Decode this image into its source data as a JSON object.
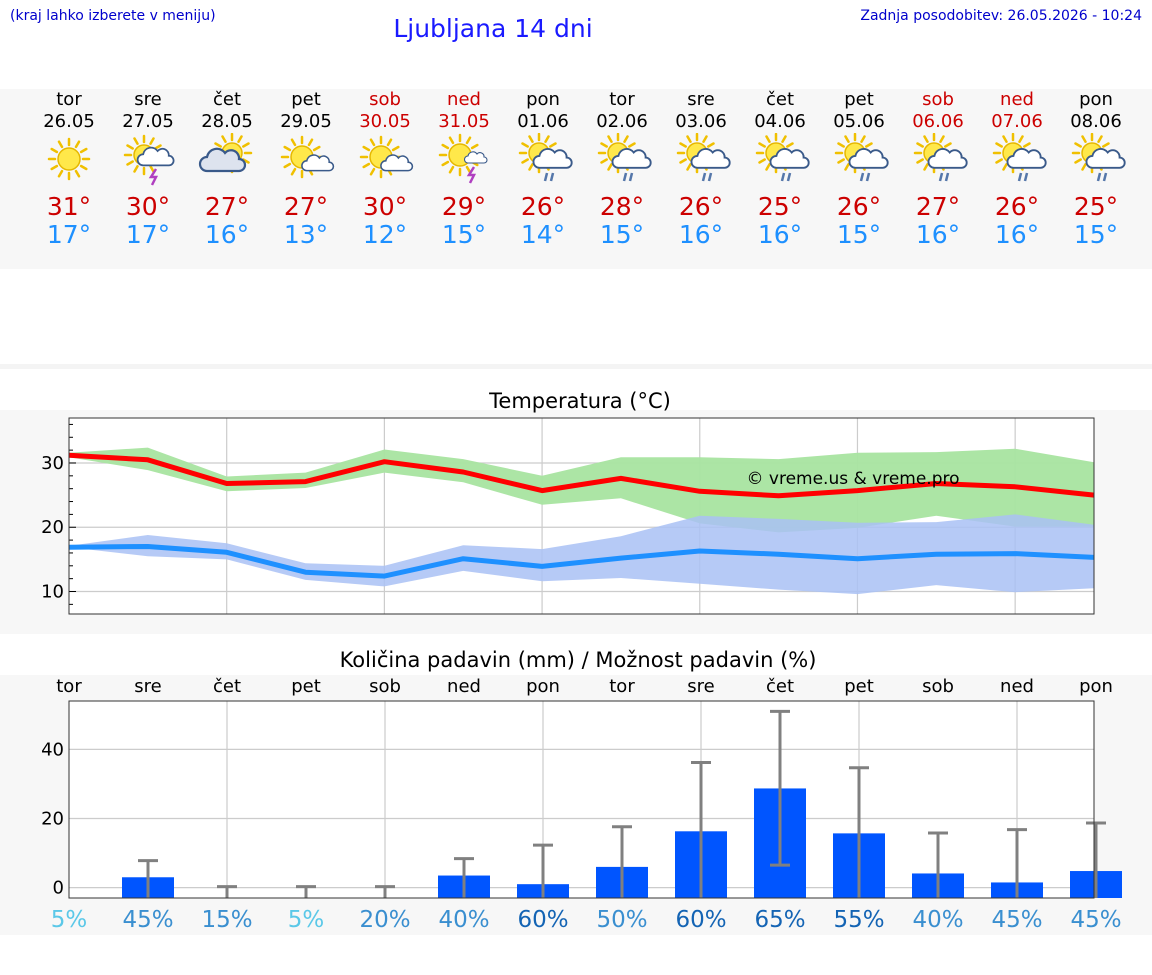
{
  "header": {
    "menu_hint": "(kraj lahko izberete v meniju)",
    "title": "Ljubljana 14 dni",
    "updated": "Zadnja posodobitev: 26.05.2026 - 10:24"
  },
  "days": [
    {
      "name": "tor",
      "date": "26.05",
      "weekend": false,
      "icon": "sun-icon",
      "tmax": "31°",
      "tmin": "17°"
    },
    {
      "name": "sre",
      "date": "27.05",
      "weekend": false,
      "icon": "sun-cloud-thunder-icon",
      "tmax": "30°",
      "tmin": "17°"
    },
    {
      "name": "čet",
      "date": "28.05",
      "weekend": false,
      "icon": "sun-behind-cloud-icon",
      "tmax": "27°",
      "tmin": "16°"
    },
    {
      "name": "pet",
      "date": "29.05",
      "weekend": false,
      "icon": "sun-small-cloud-icon",
      "tmax": "27°",
      "tmin": "13°"
    },
    {
      "name": "sob",
      "date": "30.05",
      "weekend": true,
      "icon": "sun-small-cloud-icon",
      "tmax": "30°",
      "tmin": "12°"
    },
    {
      "name": "ned",
      "date": "31.05",
      "weekend": true,
      "icon": "sun-thunder-icon",
      "tmax": "29°",
      "tmin": "15°"
    },
    {
      "name": "pon",
      "date": "01.06",
      "weekend": false,
      "icon": "sun-cloud-rain-icon",
      "tmax": "26°",
      "tmin": "14°"
    },
    {
      "name": "tor",
      "date": "02.06",
      "weekend": false,
      "icon": "sun-cloud-rain-icon",
      "tmax": "28°",
      "tmin": "15°"
    },
    {
      "name": "sre",
      "date": "03.06",
      "weekend": false,
      "icon": "sun-cloud-rain-icon",
      "tmax": "26°",
      "tmin": "16°"
    },
    {
      "name": "čet",
      "date": "04.06",
      "weekend": false,
      "icon": "sun-cloud-rain-icon",
      "tmax": "25°",
      "tmin": "16°"
    },
    {
      "name": "pet",
      "date": "05.06",
      "weekend": false,
      "icon": "sun-cloud-rain-icon",
      "tmax": "26°",
      "tmin": "15°"
    },
    {
      "name": "sob",
      "date": "06.06",
      "weekend": true,
      "icon": "sun-cloud-rain-icon",
      "tmax": "27°",
      "tmin": "16°"
    },
    {
      "name": "ned",
      "date": "07.06",
      "weekend": true,
      "icon": "sun-cloud-rain-icon",
      "tmax": "26°",
      "tmin": "16°"
    },
    {
      "name": "pon",
      "date": "08.06",
      "weekend": false,
      "icon": "sun-cloud-rain-icon",
      "tmax": "25°",
      "tmin": "15°"
    }
  ],
  "chart_data": [
    {
      "type": "line",
      "title": "Temperatura (°C)",
      "watermark": "© vreme.us & vreme.pro",
      "x": [
        "26.05",
        "27.05",
        "28.05",
        "29.05",
        "30.05",
        "31.05",
        "01.06",
        "02.06",
        "03.06",
        "04.06",
        "05.06",
        "06.06",
        "07.06",
        "08.06"
      ],
      "ylim": [
        6.5,
        37
      ],
      "yticks": [
        10,
        20,
        30
      ],
      "grid": true,
      "series": [
        {
          "values": [
            31.2,
            30.5,
            26.8,
            27.1,
            30.2,
            28.6,
            25.7,
            27.6,
            25.6,
            24.9,
            25.7,
            26.8,
            26.3,
            25.0
          ],
          "color": "#ff0000"
        },
        {
          "values": [
            16.9,
            17.0,
            16.1,
            13.0,
            12.4,
            15.1,
            13.9,
            15.2,
            16.3,
            15.8,
            15.1,
            15.8,
            15.9,
            15.3
          ],
          "color": "#1e90ff"
        }
      ],
      "bands": [
        {
          "upper": [
            31.6,
            32.4,
            27.9,
            28.5,
            32.1,
            30.6,
            28.0,
            30.9,
            30.9,
            30.6,
            31.6,
            31.7,
            32.2,
            30.1
          ],
          "lower": [
            30.9,
            28.9,
            25.6,
            26.1,
            28.5,
            27.0,
            23.5,
            24.5,
            20.6,
            19.2,
            19.9,
            21.8,
            20.1,
            20.1
          ],
          "color": "#a8e4a0"
        },
        {
          "upper": [
            17.1,
            18.8,
            17.5,
            14.4,
            14.0,
            17.2,
            16.6,
            18.6,
            21.8,
            21.3,
            20.7,
            20.8,
            22.0,
            20.4
          ],
          "lower": [
            16.9,
            15.5,
            15.0,
            11.8,
            10.8,
            13.2,
            11.6,
            12.1,
            11.2,
            10.3,
            9.6,
            11.0,
            9.9,
            10.5
          ],
          "color": "#a9c1f4"
        }
      ]
    },
    {
      "type": "bar",
      "title": "Količina padavin (mm) / Možnost padavin (%)",
      "categories": [
        "tor",
        "sre",
        "čet",
        "pet",
        "sob",
        "ned",
        "pon",
        "tor",
        "sre",
        "čet",
        "pet",
        "sob",
        "ned",
        "pon"
      ],
      "values": [
        0,
        3,
        0,
        0,
        0,
        3.5,
        1,
        6,
        16.3,
        28.7,
        15.7,
        4.1,
        1.5,
        4.8
      ],
      "error_low": [
        0,
        0,
        0,
        0,
        0,
        0,
        0,
        0,
        0,
        6.5,
        0,
        0,
        0,
        0
      ],
      "error_high": [
        0,
        7.8,
        0.3,
        0.3,
        0.3,
        8.4,
        12.3,
        17.6,
        36.2,
        51,
        34.7,
        15.8,
        16.8,
        18.7
      ],
      "probability": [
        "5%",
        "45%",
        "15%",
        "5%",
        "20%",
        "40%",
        "60%",
        "50%",
        "60%",
        "65%",
        "55%",
        "40%",
        "45%",
        "45%"
      ],
      "probability_colors": [
        "#5bc8e8",
        "#3a8fd0",
        "#3a8fd0",
        "#5bc8e8",
        "#3a8fd0",
        "#3a8fd0",
        "#1464b4",
        "#3a8fd0",
        "#1464b4",
        "#1464b4",
        "#1464b4",
        "#3a8fd0",
        "#3a8fd0",
        "#3a8fd0"
      ],
      "ylim": [
        -3,
        54
      ],
      "yticks": [
        0,
        20,
        40
      ],
      "bar_color": "#0055ff",
      "error_color": "#808080",
      "grid": true
    }
  ]
}
